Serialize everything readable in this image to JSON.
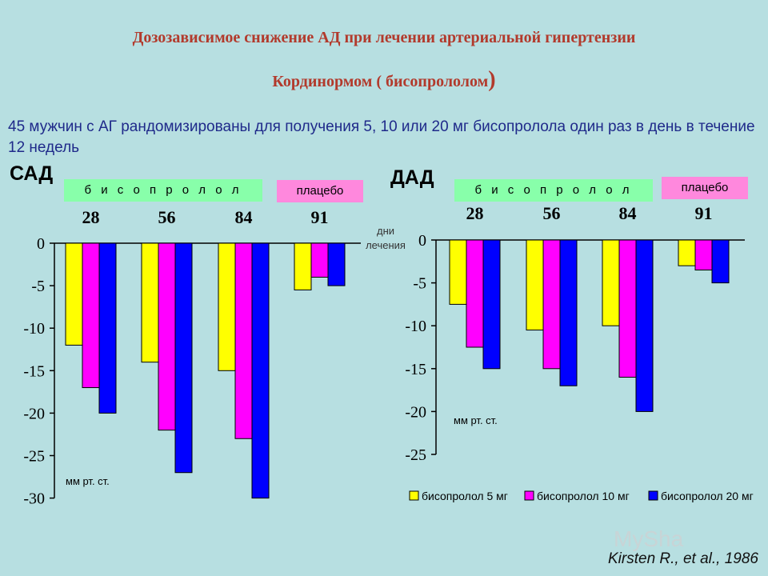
{
  "header": {
    "title_line1": "Дозозависимое снижение АД при лечении артериальной гипертензии",
    "title_line2": "Кординормом ( бисопрололом",
    "title_line2_paren": ")",
    "description": "45 мужчин с АГ рандомизированы для получения 5, 10 или 20 мг бисопролола один раз в день в течение 12 недель"
  },
  "left_panel": {
    "title": "САД",
    "drug_tag": "б и с о п р о л о л",
    "placebo_tag": "плацебо"
  },
  "right_panel": {
    "title": "ДАД",
    "drug_tag": "б и с о п р о л о л",
    "placebo_tag": "плацебо"
  },
  "days_label": {
    "line1": "дни",
    "line2": "лечения"
  },
  "credit": "Kirsten R., et al., 1986",
  "watermark": "MySha",
  "colors": {
    "series5": "#ffff00",
    "series10": "#ff00ff",
    "series20": "#0000ff",
    "tag_green": "#88ffaa",
    "tag_pink": "#ff88dd",
    "background": "#b7dfe1"
  },
  "chart_data": [
    {
      "type": "bar",
      "title": "САД",
      "categories": [
        "28",
        "56",
        "84",
        "91"
      ],
      "ylabel": "мм рт. ст.",
      "ylim": [
        -30,
        0
      ],
      "yticks": [
        0,
        -5,
        -10,
        -15,
        -20,
        -25,
        -30
      ],
      "grid": false,
      "series": [
        {
          "name": "бисопролол 5 мг",
          "color": "#ffff00",
          "values": [
            -12,
            -14,
            -15,
            -5.5
          ]
        },
        {
          "name": "бисопролол 10 мг",
          "color": "#ff00ff",
          "values": [
            -17,
            -22,
            -23,
            -4
          ]
        },
        {
          "name": "бисопролол 20 мг",
          "color": "#0000ff",
          "values": [
            -20,
            -27,
            -30,
            -5
          ]
        }
      ]
    },
    {
      "type": "bar",
      "title": "ДАД",
      "categories": [
        "28",
        "56",
        "84",
        "91"
      ],
      "ylabel": "мм рт. ст.",
      "ylim": [
        -25,
        0
      ],
      "yticks": [
        0,
        -5,
        -10,
        -15,
        -20,
        -25
      ],
      "grid": false,
      "legend": "bottom",
      "series": [
        {
          "name": "бисопролол 5 мг",
          "color": "#ffff00",
          "values": [
            -7.5,
            -10.5,
            -10,
            -3
          ]
        },
        {
          "name": "бисопролол 10 мг",
          "color": "#ff00ff",
          "values": [
            -12.5,
            -15,
            -16,
            -3.5
          ]
        },
        {
          "name": "бисопролол 20 мг",
          "color": "#0000ff",
          "values": [
            -15,
            -17,
            -20,
            -5
          ]
        }
      ]
    }
  ]
}
